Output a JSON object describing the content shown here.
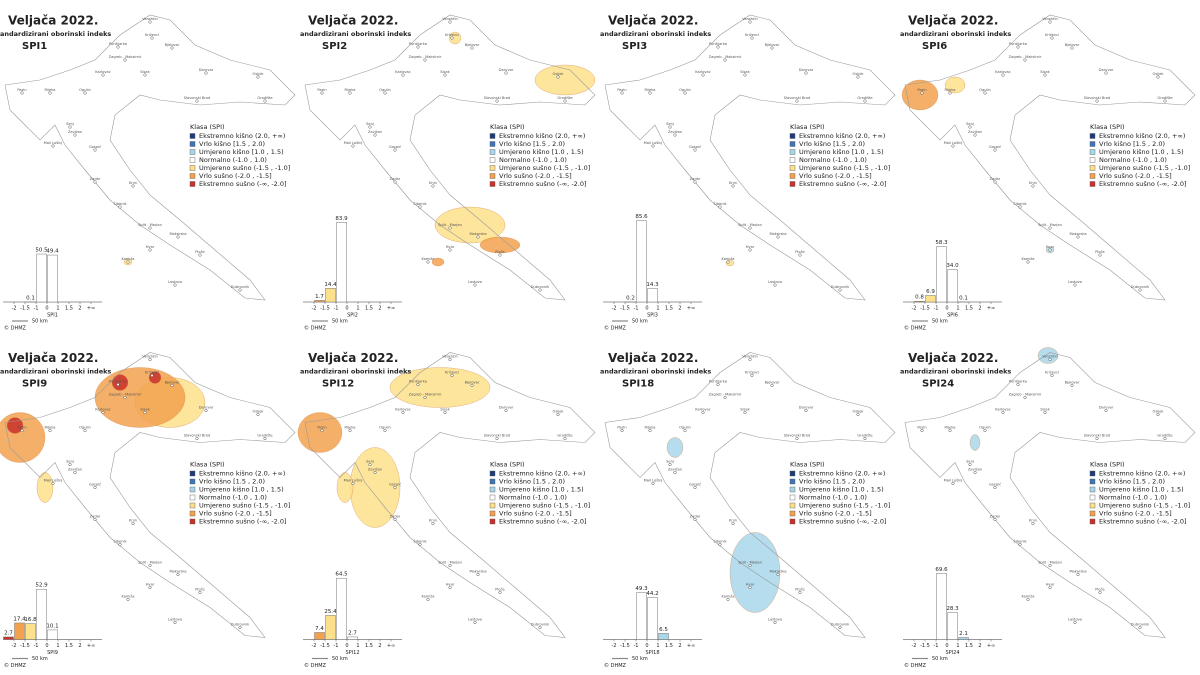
{
  "legend_title": "Klasa (SPI)",
  "classes": [
    {
      "name": "Ekstremno kišno (2.0, +∞)",
      "color": "#1f3b7a"
    },
    {
      "name": "Vrlo kišno [1.5 , 2.0)",
      "color": "#3f74b8"
    },
    {
      "name": "Umjereno kišno [1.0 , 1.5)",
      "color": "#a9d7ea"
    },
    {
      "name": "Normalno (-1.0 , 1.0)",
      "color": "#ffffff"
    },
    {
      "name": "Umjereno sušno (-1.5 , -1.0]",
      "color": "#fde08b"
    },
    {
      "name": "Vrlo sušno (-2.0 , -1.5]",
      "color": "#f2a24f"
    },
    {
      "name": "Ekstremno sušno (-∞, -2.0]",
      "color": "#c9302a"
    }
  ],
  "bin_edges": [
    "-2",
    "-1.5",
    "-1",
    "0",
    "1",
    "1.5",
    "2",
    "+∞"
  ],
  "scale_label": "50 km",
  "credit": "© DHMZ",
  "stations": [
    "Varaždin",
    "Križevci",
    "Puntijarka",
    "Bjelovar",
    "Zagreb - Maksimir",
    "Karlovac",
    "Sisak",
    "Daruvar",
    "Osijek",
    "Pazin",
    "Rijeka",
    "Ogulin",
    "Slavonski Brod",
    "Gradište",
    "Senj",
    "Zavižan",
    "Mali Lošinj",
    "Gospić",
    "Knin",
    "Zadar",
    "Šibenik",
    "Split - Marjan",
    "Makarska",
    "Komiža",
    "Hvar",
    "Ploče",
    "Lastovo",
    "Dubrovnik"
  ],
  "panels": [
    {
      "title": "Veljača 2022.",
      "subtitle": "andardizirani oborinski indeks",
      "spi": "SPI1",
      "values": [
        null,
        null,
        0.1,
        50.5,
        49.4,
        null,
        null,
        null
      ],
      "value_labels": [
        null,
        null,
        "0.1",
        "50.5",
        "49.4",
        null,
        null,
        null
      ]
    },
    {
      "title": "Veljača 2022.",
      "subtitle": "andardizirani oborinski indeks",
      "spi": "SPI2",
      "values": [
        null,
        1.7,
        14.4,
        83.9,
        null,
        null,
        null,
        null
      ],
      "value_labels": [
        null,
        "1.7",
        "14.4",
        "83.9",
        null,
        null,
        null,
        null
      ]
    },
    {
      "title": "Veljača 2022.",
      "subtitle": "andardizirani oborinski indeks",
      "spi": "SPI3",
      "values": [
        null,
        null,
        0.2,
        85.6,
        14.3,
        null,
        null,
        null
      ],
      "value_labels": [
        null,
        null,
        "0.2",
        "85.6",
        "14.3",
        null,
        null,
        null
      ]
    },
    {
      "title": "Veljača 2022.",
      "subtitle": "andardizirani oborinski indeks",
      "spi": "SPI6",
      "values": [
        null,
        0.8,
        6.9,
        58.3,
        34.0,
        0.1,
        null,
        null
      ],
      "value_labels": [
        null,
        "0.8",
        "6.9",
        "58.3",
        "34.0",
        "0.1",
        null,
        null
      ]
    },
    {
      "title": "Veljača 2022.",
      "subtitle": "andardizirani oborinski indeks",
      "spi": "SPI9",
      "values": [
        2.7,
        17.4,
        16.8,
        52.9,
        10.1,
        null,
        null,
        null
      ],
      "value_labels": [
        "2.7",
        "17.4",
        "16.8",
        "52.9",
        "10.1",
        null,
        null,
        null
      ]
    },
    {
      "title": "Veljača 2022.",
      "subtitle": "andardizirani oborinski indeks",
      "spi": "SPI12",
      "values": [
        null,
        7.4,
        25.4,
        64.5,
        2.7,
        null,
        null,
        null
      ],
      "value_labels": [
        null,
        "7.4",
        "25.4",
        "64.5",
        "2.7",
        null,
        null,
        null
      ]
    },
    {
      "title": "Veljača 2022.",
      "subtitle": "andardizirani oborinski indeks",
      "spi": "SPI18",
      "values": [
        null,
        null,
        null,
        49.3,
        44.2,
        6.5,
        null,
        null
      ],
      "value_labels": [
        null,
        null,
        null,
        "49.3",
        "44.2",
        "6.5",
        null,
        null
      ]
    },
    {
      "title": "Veljača 2022.",
      "subtitle": "andardizirani oborinski indeks",
      "spi": "SPI24",
      "values": [
        null,
        null,
        null,
        69.6,
        28.3,
        2.1,
        null,
        null
      ],
      "value_labels": [
        null,
        null,
        null,
        "69.6",
        "28.3",
        "2.1",
        null,
        null
      ]
    }
  ]
}
